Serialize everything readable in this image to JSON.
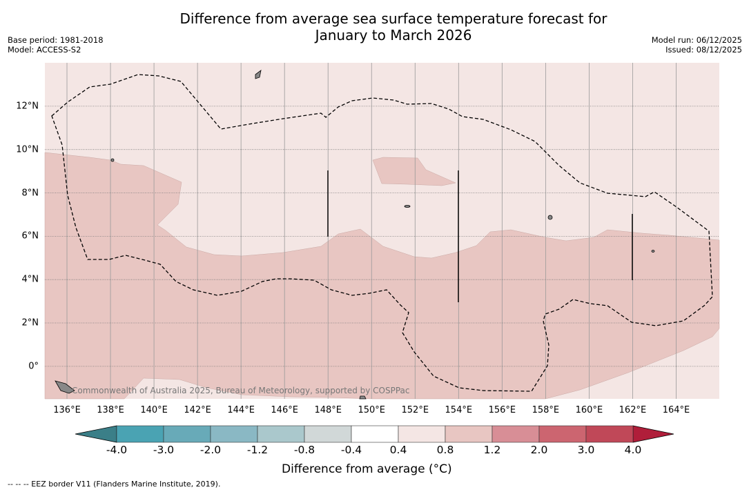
{
  "title": [
    "Difference from average sea surface temperature forecast for",
    "January to March 2026"
  ],
  "meta_left": [
    "Base period: 1981-2018",
    "Model: ACCESS-S2"
  ],
  "meta_right": [
    "Model run: 06/12/2025",
    "Issued: 08/12/2025"
  ],
  "map": {
    "lon_range": [
      135,
      166
    ],
    "lat_range": [
      -1.5,
      14
    ],
    "lon_ticks": [
      "136°E",
      "138°E",
      "140°E",
      "142°E",
      "144°E",
      "146°E",
      "148°E",
      "150°E",
      "152°E",
      "154°E",
      "156°E",
      "158°E",
      "160°E",
      "162°E",
      "164°E"
    ],
    "lat_ticks": [
      "12°N",
      "10°N",
      "8°N",
      "6°N",
      "4°N",
      "2°N",
      "0°"
    ],
    "credit": "Commonwealth of Australia 2025, Bureau of Meteorology, supported by COSPPac",
    "background_color": "#f4e6e4",
    "anomaly_color": "#e8c6c2"
  },
  "colorbar": {
    "ticks": [
      "-4.0",
      "-3.0",
      "-2.0",
      "-1.2",
      "-0.8",
      "-0.4",
      "0.4",
      "0.8",
      "1.2",
      "2.0",
      "3.0",
      "4.0"
    ],
    "colors": [
      "#4aa3b3",
      "#68aab8",
      "#8ab8c4",
      "#aac8cc",
      "#d1d8d8",
      "#ffffff",
      "#f4e6e4",
      "#e8c6c2",
      "#d88e96",
      "#cc6570",
      "#c04858"
    ],
    "under_color": "#3b7f88",
    "over_color": "#b01e3a",
    "label": "Difference from average (°C)"
  },
  "footer": "--  --  -- EEZ border V11 (Flanders Marine Institute, 2019)."
}
